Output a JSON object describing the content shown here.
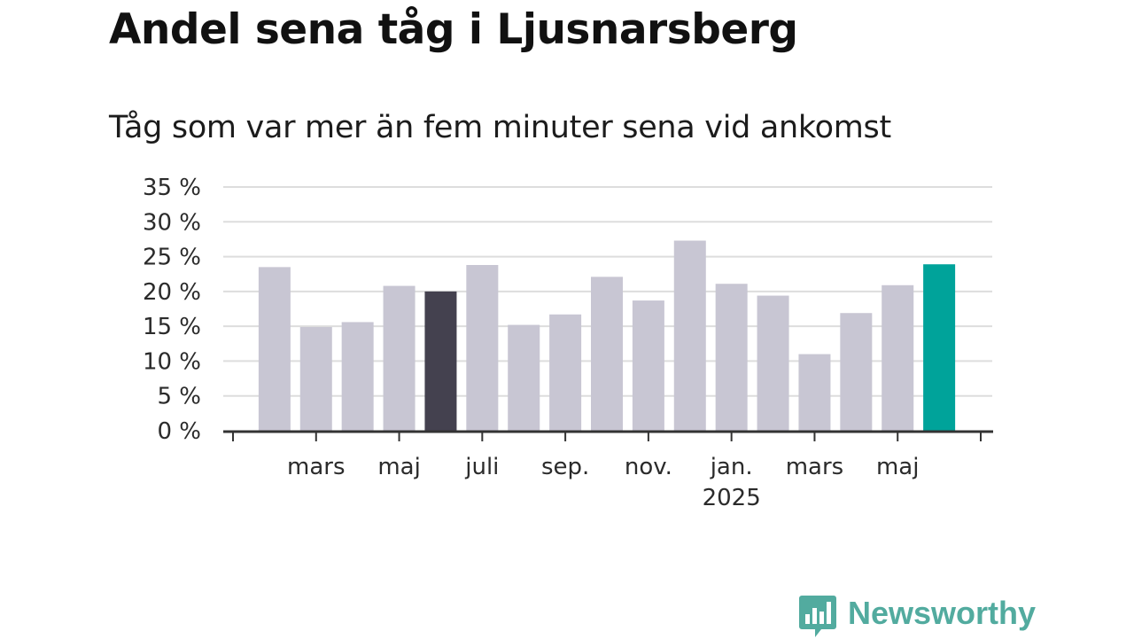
{
  "title": "Andel sena tåg i Ljusnarsberg",
  "subtitle": "Tåg som var mer än fem minuter sena vid ankomst",
  "logo_text": "Newsworthy",
  "colors": {
    "default_bar": "#c8c6d3",
    "highlight_bar": "#44414f",
    "latest_bar": "#00a39a",
    "grid": "#dddddd",
    "axis": "#333333",
    "logo": "#52ab9f"
  },
  "chart_data": {
    "type": "bar",
    "title": "Andel sena tåg i Ljusnarsberg",
    "subtitle": "Tåg som var mer än fem minuter sena vid ankomst",
    "categories": [
      "2024-02",
      "2024-03",
      "2024-04",
      "2024-05",
      "2024-06",
      "2024-07",
      "2024-08",
      "2024-09",
      "2024-10",
      "2024-11",
      "2024-12",
      "2025-01",
      "2025-02",
      "2025-03",
      "2025-04",
      "2025-05",
      "2025-06"
    ],
    "values": [
      23.5,
      14.9,
      15.6,
      20.8,
      20.0,
      23.8,
      15.2,
      16.7,
      22.1,
      18.7,
      27.3,
      21.1,
      19.4,
      11.0,
      16.9,
      20.9,
      23.9
    ],
    "bar_styles": [
      "default",
      "default",
      "default",
      "default",
      "highlight",
      "default",
      "default",
      "default",
      "default",
      "default",
      "default",
      "default",
      "default",
      "default",
      "default",
      "default",
      "latest"
    ],
    "ylim": [
      0,
      35
    ],
    "y_ticks": [
      0,
      5,
      10,
      15,
      20,
      25,
      30,
      35
    ],
    "y_tick_labels": [
      "0 %",
      "5 %",
      "10 %",
      "15 %",
      "20 %",
      "25 %",
      "30 %",
      "35 %"
    ],
    "x_labels": [
      {
        "at": "2024-03",
        "text": "mars",
        "sub": ""
      },
      {
        "at": "2024-05",
        "text": "maj",
        "sub": ""
      },
      {
        "at": "2024-07",
        "text": "juli",
        "sub": ""
      },
      {
        "at": "2024-09",
        "text": "sep.",
        "sub": ""
      },
      {
        "at": "2024-11",
        "text": "nov.",
        "sub": ""
      },
      {
        "at": "2025-01",
        "text": "jan.",
        "sub": "2025"
      },
      {
        "at": "2025-03",
        "text": "mars",
        "sub": ""
      },
      {
        "at": "2025-05",
        "text": "maj",
        "sub": ""
      }
    ],
    "grid": true,
    "legend": "none",
    "xlabel": "",
    "ylabel": ""
  }
}
